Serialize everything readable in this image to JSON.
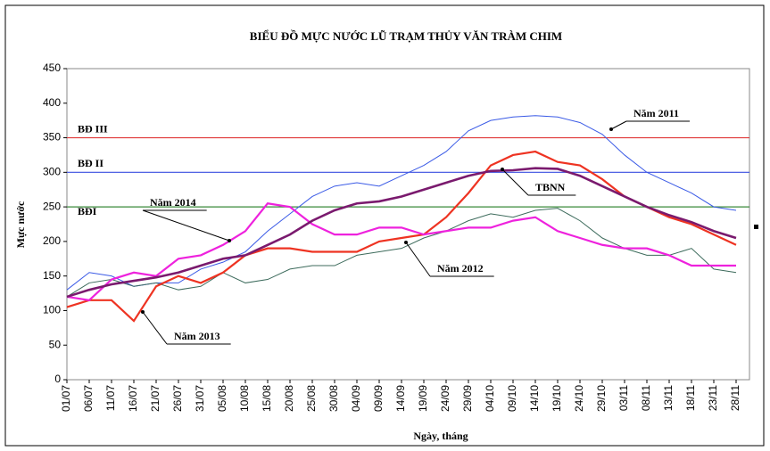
{
  "chart_data": {
    "type": "line",
    "title": "BIỂU ĐỒ MỰC NƯỚC LŨ TRẠM THỦY VĂN TRÀM CHIM",
    "x_label": "Ngày, tháng",
    "y_label": "Mực nước",
    "categories": [
      "01/07",
      "06/07",
      "11/07",
      "16/07",
      "21/07",
      "26/07",
      "31/07",
      "05/08",
      "10/08",
      "15/08",
      "20/08",
      "25/08",
      "30/08",
      "04/09",
      "09/09",
      "14/09",
      "19/09",
      "24/09",
      "29/09",
      "04/10",
      "09/10",
      "14/10",
      "19/10",
      "24/10",
      "29/10",
      "03/11",
      "08/11",
      "13/11",
      "18/11",
      "23/11",
      "28/11"
    ],
    "ylim": [
      0,
      450
    ],
    "yticks": [
      0,
      50,
      100,
      150,
      200,
      250,
      300,
      350,
      400,
      450
    ],
    "reference_lines": [
      {
        "label": "BĐ III",
        "value": 350,
        "color": "#e03a3a"
      },
      {
        "label": "BĐ II",
        "value": 300,
        "color": "#3a4ee0"
      },
      {
        "label": "BĐI",
        "value": 250,
        "color": "#3a8a3a"
      }
    ],
    "series": [
      {
        "name": "Năm 2011",
        "color": "#3a5ae6",
        "width": 1,
        "values": [
          130,
          155,
          150,
          135,
          140,
          140,
          160,
          170,
          185,
          215,
          240,
          265,
          280,
          285,
          280,
          295,
          310,
          330,
          360,
          375,
          380,
          382,
          380,
          372,
          355,
          325,
          300,
          285,
          270,
          250,
          245
        ]
      },
      {
        "name": "Năm 2012",
        "color": "#3d6b5c",
        "width": 1,
        "values": [
          120,
          140,
          145,
          135,
          140,
          130,
          135,
          155,
          140,
          145,
          160,
          165,
          165,
          180,
          185,
          190,
          205,
          215,
          230,
          240,
          235,
          245,
          248,
          230,
          205,
          190,
          180,
          180,
          190,
          160,
          155
        ]
      },
      {
        "name": "Năm 2013",
        "color": "#ee3322",
        "width": 2.2,
        "values": [
          105,
          115,
          115,
          85,
          135,
          150,
          140,
          155,
          180,
          190,
          190,
          185,
          185,
          185,
          200,
          205,
          210,
          235,
          270,
          310,
          325,
          330,
          315,
          310,
          290,
          265,
          250,
          235,
          225,
          210,
          195
        ]
      },
      {
        "name": "Năm 2014",
        "color": "#ee22dd",
        "width": 2.2,
        "values": [
          120,
          115,
          145,
          155,
          150,
          175,
          180,
          195,
          215,
          255,
          250,
          225,
          210,
          210,
          220,
          220,
          210,
          215,
          220,
          220,
          230,
          235,
          215,
          205,
          195,
          190,
          190,
          180,
          165,
          165,
          165
        ]
      },
      {
        "name": "TBNN",
        "color": "#7a1a6e",
        "width": 2.6,
        "values": [
          120,
          130,
          138,
          143,
          148,
          155,
          165,
          175,
          180,
          195,
          210,
          230,
          245,
          255,
          258,
          265,
          275,
          285,
          295,
          302,
          303,
          306,
          305,
          295,
          280,
          265,
          250,
          238,
          228,
          215,
          205
        ]
      }
    ]
  }
}
